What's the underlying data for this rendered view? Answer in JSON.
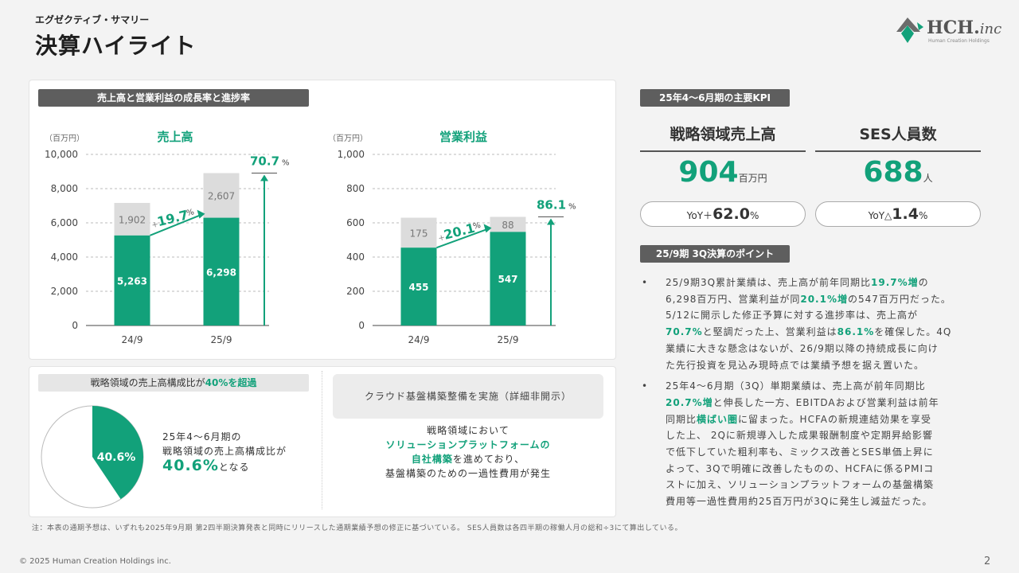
{
  "header": {
    "subtitle": "エグゼクティブ・サマリー",
    "title": "決算ハイライト"
  },
  "logo": {
    "name": "HCH.",
    "suffix": "inc",
    "tagline": "Human Creation Holdings"
  },
  "growth_section": {
    "label": "売上高と営業利益の成長率と進捗率",
    "unit": "（百万円）"
  },
  "chart_data": [
    {
      "type": "bar",
      "title": "売上高",
      "categories": [
        "24/9",
        "25/9"
      ],
      "series": [
        {
          "name": "",
          "values": [
            5263,
            6298
          ]
        },
        {
          "name": "",
          "values": [
            1902,
            2607
          ]
        }
      ],
      "data_labels_bottom": [
        "5,263",
        "6,298"
      ],
      "data_labels_top": [
        "1,902",
        "2,607"
      ],
      "ylim": [
        0,
        10000
      ],
      "yticks": [
        "0",
        "2,000",
        "4,000",
        "6,000",
        "8,000",
        "10,000"
      ],
      "growth_label": "19.7",
      "progress_label": "70.7",
      "pct": "%",
      "prefix": "+"
    },
    {
      "type": "bar",
      "title": "営業利益",
      "categories": [
        "24/9",
        "25/9"
      ],
      "series": [
        {
          "name": "",
          "values": [
            455,
            547
          ]
        },
        {
          "name": "",
          "values": [
            175,
            88
          ]
        }
      ],
      "data_labels_bottom": [
        "455",
        "547"
      ],
      "data_labels_top": [
        "175",
        "88"
      ],
      "ylim": [
        0,
        1000
      ],
      "yticks": [
        "0",
        "200",
        "400",
        "600",
        "800",
        "1,000"
      ],
      "growth_label": "20.1",
      "progress_label": "86.1",
      "pct": "%",
      "prefix": "+"
    },
    {
      "type": "pie",
      "values": [
        40.6,
        59.4
      ],
      "label": "40.6%"
    }
  ],
  "strategy_section": {
    "label_pre": "戦略領域の売上高構成比が",
    "label_highlight": "40%を超過",
    "line1": "25年4～6月期の",
    "line2": "戦略領域の売上高構成比が",
    "value": "40.6%",
    "value_suffix": "となる"
  },
  "cloud_section": {
    "box": "クラウド基盤構築整備を実施（詳細非開示）",
    "line1": "戦略領域において",
    "highlight1": "ソリューションプラットフォームの",
    "highlight2": "自社構築",
    "line2_suffix": "を進めており、",
    "line3": "基盤構築のための一過性費用が発生"
  },
  "kpi": {
    "label": "25年4～6月期の主要KPI",
    "items": [
      {
        "head": "戦略領域売上高",
        "value": "904",
        "unit": "百万円",
        "yoy_pre": "YoY＋",
        "yoy_val": "62.0",
        "yoy_unit": "%"
      },
      {
        "head": "SES人員数",
        "value": "688",
        "unit": "人",
        "yoy_pre": "YoY△",
        "yoy_val": "1.4",
        "yoy_unit": "%"
      }
    ]
  },
  "points": {
    "label": "25/9期 3Q決算のポイント",
    "bullet": "•",
    "b1": [
      "25/9期3Q累計業績は、売上高が前年同期比",
      "19.7%増",
      "の",
      "6,298百万円、営業利益が同",
      "20.1%増",
      "の547百万円だった。",
      "5/12に開示した修正予算に対する進捗率は、売上高が",
      "70.7%",
      "と堅調だった上、営業利益は",
      "86.1%",
      "を確保した。4Q",
      "業績に大きな懸念はないが、26/9期以降の持続成長に向け",
      "た先行投資を見込み現時点では業績予想を据え置いた。"
    ],
    "b2": [
      "25年4～6月期（3Q）単期業績は、売上高が前年同期比",
      "20.7%増",
      "と伸長した一方、EBITDAおよび営業利益は前年",
      "同期比",
      "横ばい圏",
      "に留まった。HCFAの新規連結効果を享受",
      "した上、 2Qに新規導入した成果報酬制度や定期昇給影響",
      "で低下していた粗利率も、ミックス改善とSES単価上昇に",
      "よって、3Qで明確に改善したものの、HCFAに係るPMIコ",
      "ストに加え、ソリューションプラットフォームの基盤構築",
      "費用等一過性費用約25百万円が3Qに発生し減益だった。"
    ]
  },
  "footer": {
    "note": "注：本表の通期予想は、いずれも2025年9月期 第2四半期決算発表と同時にリリースした通期業績予想の修正に基づいている。 SES人員数は各四半期の稼働人月の総和÷3にて算出している。",
    "copyright": "© 2025 Human Creation Holdings inc.",
    "page": "2"
  },
  "colors": {
    "green": "#12a17a",
    "gray_bar": "#dcdcdc",
    "dark_label": "#5e5e5e"
  }
}
